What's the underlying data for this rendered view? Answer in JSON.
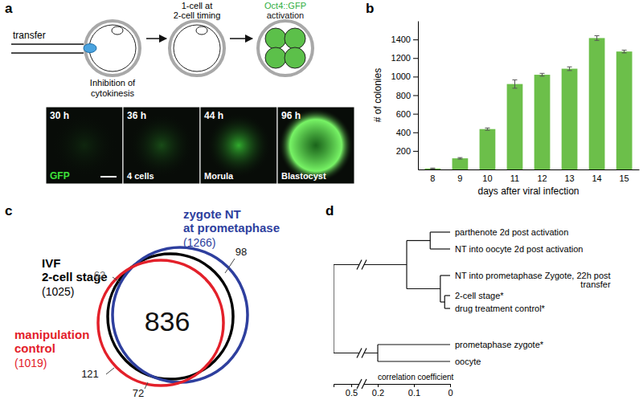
{
  "panel_labels": [
    "a",
    "b",
    "c",
    "d"
  ],
  "diagram_a": {
    "transfer_label": "transfer",
    "inhibition_label": [
      "Inhibition of",
      "cytokinesis"
    ],
    "stage_label": [
      "1-cell at",
      "2-cell timing"
    ],
    "activation_label": [
      "Oct4::GFP",
      "activation"
    ],
    "images": [
      {
        "time": "30 h"
      },
      {
        "time": "36 h",
        "caption": "4 cells"
      },
      {
        "time": "44 h",
        "caption": "Morula"
      },
      {
        "time": "96 h",
        "caption": "Blastocyst"
      }
    ],
    "channel_label": "GFP"
  },
  "chart_data": {
    "type": "bar",
    "categories": [
      8,
      9,
      10,
      11,
      12,
      13,
      14,
      15
    ],
    "values": [
      10,
      120,
      435,
      920,
      1020,
      1085,
      1415,
      1270
    ],
    "errors": [
      5,
      8,
      12,
      45,
      15,
      20,
      25,
      15
    ],
    "color": "#6cbf4a",
    "ylim": [
      0,
      1600
    ],
    "yticks": [
      200,
      400,
      600,
      800,
      1000,
      1200,
      1400
    ],
    "xlabel": "days after viral infection",
    "ylabel": "# of colonies"
  },
  "venn_c": {
    "sets": [
      {
        "label": [
          "IVF",
          "2-cell stage"
        ],
        "count_label": "(1025)",
        "color": "#000000"
      },
      {
        "label": [
          "zygote NT",
          "at prometaphase"
        ],
        "count_label": "(1266)",
        "color": "#2e3f9e"
      },
      {
        "label": [
          "manipulation",
          "control"
        ],
        "count_label": "(1019)",
        "color": "#e3202a"
      }
    ],
    "regions": [
      836,
      98,
      62,
      121,
      72
    ]
  },
  "dendrogram_d": {
    "axis_label": "correlation coefficient",
    "xlim": [
      0.55,
      0
    ],
    "xticks": [
      0.5,
      0.2,
      0.1,
      0
    ],
    "tree": {
      "height": 0.55,
      "children": [
        {
          "height": 0.12,
          "children": [
            {
              "height": 0.055,
              "children": [
                {
                  "label": "parthenote 2d post activation"
                },
                {
                  "label": "NT into oocyte 2d post activation"
                }
              ]
            },
            {
              "height": 0.027,
              "children": [
                {
                  "label": [
                    "NT into prometaphase Zygote, 22h post",
                    "transfer"
                  ]
                },
                {
                  "height": 0.015,
                  "children": [
                    {
                      "label": "2-cell stage*"
                    },
                    {
                      "label": "drug treatment control*"
                    }
                  ]
                }
              ]
            }
          ]
        },
        {
          "height": 0.2,
          "children": [
            {
              "label": "prometaphase zygote*"
            },
            {
              "label": "oocyte"
            }
          ]
        }
      ]
    }
  }
}
